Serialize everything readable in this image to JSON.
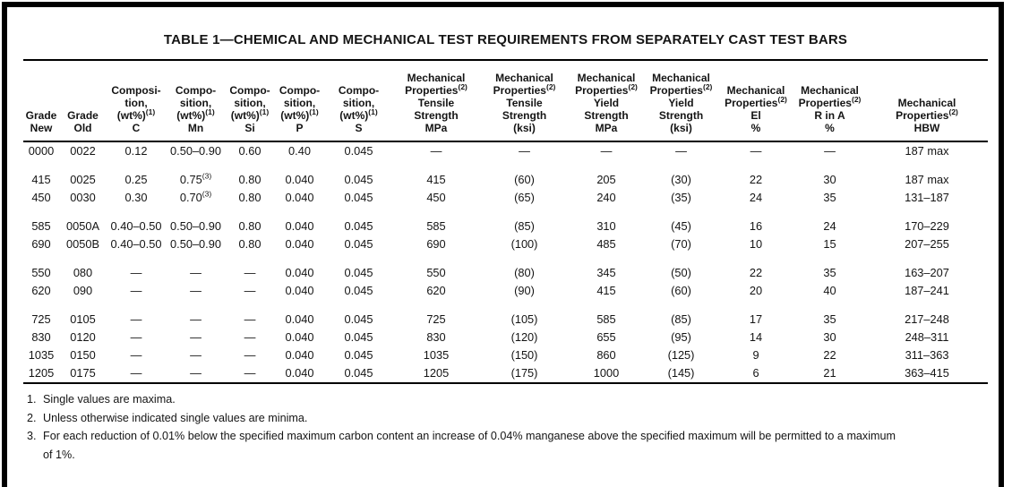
{
  "title": "TABLE 1—CHEMICAL AND MECHANICAL TEST REQUIREMENTS FROM SEPARATELY CAST TEST BARS",
  "table": {
    "headers": [
      "Grade\nNew",
      "Grade\nOld",
      "Composi-\ntion,\n(wt%)^(1)\nC",
      "Compo-\nsition,\n(wt%)^(1)\nMn",
      "Compo-\nsition,\n(wt%)^(1)\nSi",
      "Compo-\nsition,\n(wt%)^(1)\nP",
      "Compo-\nsition,\n(wt%)^(1)\nS",
      "Mechanical\nProperties^(2)\nTensile\nStrength\nMPa",
      "Mechanical\nProperties^(2)\nTensile\nStrength\n(ksi)",
      "Mechanical\nProperties^(2)\nYield\nStrength\nMPa",
      "Mechanical\nProperties^(2)\nYield\nStrength\n(ksi)",
      "Mechanical\nProperties^(2)\nEl\n%",
      "Mechanical\nProperties^(2)\nR in A\n%",
      "Mechanical\nProperties^(2)\nHBW"
    ],
    "row_groups": [
      [
        [
          "0000",
          "0022",
          "0.12",
          "0.50–0.90",
          "0.60",
          "0.40",
          "0.045",
          "—",
          "—",
          "—",
          "—",
          "—",
          "—",
          "187 max"
        ]
      ],
      [
        [
          "415",
          "0025",
          "0.25",
          "0.75^(3)",
          "0.80",
          "0.040",
          "0.045",
          "415",
          "(60)",
          "205",
          "(30)",
          "22",
          "30",
          "187 max"
        ],
        [
          "450",
          "0030",
          "0.30",
          "0.70^(3)",
          "0.80",
          "0.040",
          "0.045",
          "450",
          "(65)",
          "240",
          "(35)",
          "24",
          "35",
          "131–187"
        ]
      ],
      [
        [
          "585",
          "0050A",
          "0.40–0.50",
          "0.50–0.90",
          "0.80",
          "0.040",
          "0.045",
          "585",
          "(85)",
          "310",
          "(45)",
          "16",
          "24",
          "170–229"
        ],
        [
          "690",
          "0050B",
          "0.40–0.50",
          "0.50–0.90",
          "0.80",
          "0.040",
          "0.045",
          "690",
          "(100)",
          "485",
          "(70)",
          "10",
          "15",
          "207–255"
        ]
      ],
      [
        [
          "550",
          "080",
          "—",
          "—",
          "—",
          "0.040",
          "0.045",
          "550",
          "(80)",
          "345",
          "(50)",
          "22",
          "35",
          "163–207"
        ],
        [
          "620",
          "090",
          "—",
          "—",
          "—",
          "0.040",
          "0.045",
          "620",
          "(90)",
          "415",
          "(60)",
          "20",
          "40",
          "187–241"
        ]
      ],
      [
        [
          "725",
          "0105",
          "—",
          "—",
          "—",
          "0.040",
          "0.045",
          "725",
          "(105)",
          "585",
          "(85)",
          "17",
          "35",
          "217–248"
        ],
        [
          "830",
          "0120",
          "—",
          "—",
          "—",
          "0.040",
          "0.045",
          "830",
          "(120)",
          "655",
          "(95)",
          "14",
          "30",
          "248–311"
        ],
        [
          "1035",
          "0150",
          "—",
          "—",
          "—",
          "0.040",
          "0.045",
          "1035",
          "(150)",
          "860",
          "(125)",
          "9",
          "22",
          "311–363"
        ],
        [
          "1205",
          "0175",
          "—",
          "—",
          "—",
          "0.040",
          "0.045",
          "1205",
          "(175)",
          "1000",
          "(145)",
          "6",
          "21",
          "363–415"
        ]
      ]
    ]
  },
  "footnotes": [
    {
      "num": "1.",
      "text": "Single values are maxima."
    },
    {
      "num": "2.",
      "text": "Unless otherwise indicated single values are minima."
    },
    {
      "num": "3.",
      "text": "For each reduction of 0.01% below the specified maximum carbon content an increase of 0.04% manganese above the specified maximum will be permitted to a maximum\nof 1%."
    }
  ]
}
